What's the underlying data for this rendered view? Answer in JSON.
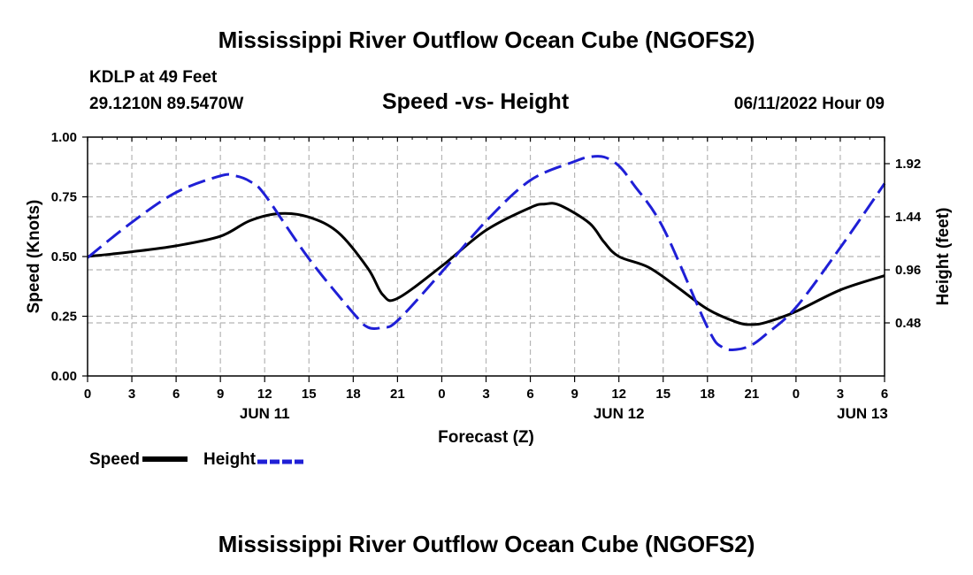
{
  "header": {
    "title": "Mississippi River Outflow Ocean Cube (NGOFS2)",
    "station": "KDLP at 49 Feet",
    "coords": "29.1210N  89.5470W",
    "date": "06/11/2022 Hour 09",
    "bottom_title": "Mississippi River Outflow Ocean Cube (NGOFS2)"
  },
  "legend": {
    "speed_label": "Speed",
    "height_label": "Height"
  },
  "colors": {
    "speed": "#000000",
    "height": "#1f1fd6",
    "grid": "#b5b5b5"
  },
  "chart_data": {
    "type": "line",
    "title": "Speed -vs- Height",
    "xlabel": "Forecast (Z)",
    "ylabel": "Speed (Knots)",
    "y2label": "Height (feet)",
    "xlim": [
      0,
      54
    ],
    "ylim": [
      0,
      1.0
    ],
    "y2lim": [
      0,
      2.16
    ],
    "x_ticks": [
      0,
      3,
      6,
      9,
      12,
      15,
      18,
      21,
      24,
      27,
      30,
      33,
      36,
      39,
      42,
      45,
      48,
      51,
      54
    ],
    "x_tick_labels": [
      "0",
      "3",
      "6",
      "9",
      "12",
      "15",
      "18",
      "21",
      "0",
      "3",
      "6",
      "9",
      "12",
      "15",
      "18",
      "21",
      "0",
      "3",
      "6"
    ],
    "y_ticks": [
      0,
      0.25,
      0.5,
      0.75,
      1.0
    ],
    "y_tick_labels": [
      "0.00",
      "0.25",
      "0.50",
      "0.75",
      "1.00"
    ],
    "y2_ticks": [
      0.48,
      0.96,
      1.44,
      1.92
    ],
    "y2_tick_labels": [
      "0.48",
      "0.96",
      "1.44",
      "1.92"
    ],
    "day_labels": [
      {
        "x": 12,
        "label": "JUN 11"
      },
      {
        "x": 36,
        "label": "JUN 12"
      },
      {
        "x": 52.5,
        "label": "JUN 13"
      }
    ],
    "grid": true,
    "series": [
      {
        "name": "Speed",
        "axis": "left",
        "style": "solid",
        "x": [
          0,
          3,
          6,
          9,
          11,
          13,
          15,
          17,
          19,
          20,
          21,
          24,
          27,
          30,
          31,
          32,
          34,
          35,
          36,
          38,
          40,
          42,
          44,
          45,
          46,
          48,
          51,
          54
        ],
        "values": [
          0.5,
          0.52,
          0.545,
          0.585,
          0.65,
          0.68,
          0.665,
          0.6,
          0.45,
          0.34,
          0.325,
          0.46,
          0.61,
          0.705,
          0.72,
          0.715,
          0.64,
          0.56,
          0.5,
          0.455,
          0.37,
          0.28,
          0.225,
          0.215,
          0.225,
          0.27,
          0.36,
          0.42
        ]
      },
      {
        "name": "Height",
        "axis": "right",
        "style": "dashed",
        "x": [
          0,
          3,
          6,
          9,
          10,
          11,
          12,
          15,
          18,
          19,
          20,
          21,
          24,
          27,
          30,
          33,
          34,
          35,
          36,
          37,
          39,
          42,
          43,
          44,
          45,
          46,
          48,
          51,
          54
        ],
        "values": [
          1.07,
          1.39,
          1.66,
          1.81,
          1.81,
          1.76,
          1.64,
          1.06,
          0.57,
          0.44,
          0.44,
          0.5,
          0.94,
          1.4,
          1.77,
          1.94,
          1.98,
          1.98,
          1.9,
          1.73,
          1.34,
          0.44,
          0.26,
          0.24,
          0.28,
          0.38,
          0.62,
          1.16,
          1.74
        ]
      }
    ]
  }
}
